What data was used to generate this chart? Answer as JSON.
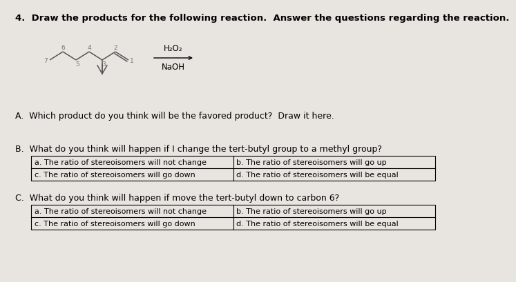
{
  "background_color": "#e8e4e0",
  "title": "4.  Draw the products for the following reaction.  Answer the questions regarding the reaction.",
  "title_fontsize": 9.5,
  "title_fontweight": "bold",
  "reagent_line": "H₂O₂",
  "reagent_line2": "NaOH",
  "section_A": "A.  Which product do you think will be the favored product?  Draw it here.",
  "section_B": "B.  What do you think will happen if I change the tert-butyl group to a methyl group?",
  "section_C": "C.  What do you think will happen if move the tert-butyl down to carbon 6?",
  "table_B": [
    [
      "a. The ratio of stereoisomers will not change",
      "b. The ratio of stereoisomers will go up"
    ],
    [
      "c. The ratio of stereoisomers will go down",
      "d. The ratio of stereoisomers will be equal"
    ]
  ],
  "table_C": [
    [
      "a. The ratio of stereoisomers will not change",
      "b. The ratio of stereoisomers will go up"
    ],
    [
      "c. The ratio of stereoisomers will go down",
      "d. The ratio of stereoisomers will be equal"
    ]
  ],
  "text_fontsize": 9.0,
  "table_fontsize": 8.0,
  "mol_color": "#555555",
  "num_color": "#777777"
}
